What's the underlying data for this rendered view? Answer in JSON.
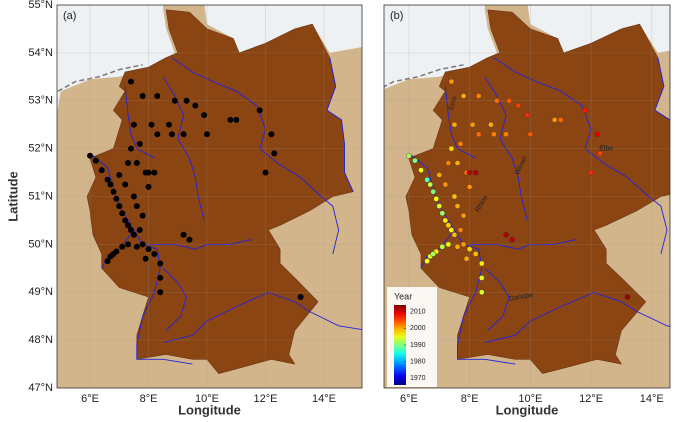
{
  "chart_data": [
    {
      "type": "map",
      "panel": "(a)",
      "xlabel": "Longitude",
      "ylabel": "Latitude",
      "x": [
        6.0,
        6.2,
        6.4,
        6.6,
        6.7,
        6.8,
        6.9,
        7.0,
        7.1,
        7.2,
        7.3,
        7.4,
        7.5,
        7.3,
        7.1,
        6.9,
        6.7,
        6.6,
        6.8,
        7.6,
        7.8,
        8.0,
        8.2,
        8.4,
        8.4,
        8.4,
        7.9,
        7.7,
        7.8,
        7.6,
        7.5,
        7.2,
        7.0,
        7.3,
        7.6,
        7.9,
        8.0,
        7.4,
        7.5,
        7.7,
        8.1,
        8.3,
        8.7,
        8.8,
        7.4,
        7.8,
        8.3,
        8.9,
        9.3,
        9.6,
        9.9,
        10.0,
        9.2,
        10.8,
        11.0,
        11.8,
        12.2,
        12.3,
        12.0,
        9.2,
        9.4,
        13.2,
        8.2,
        8.0
      ],
      "y": [
        51.85,
        51.75,
        51.55,
        51.35,
        51.25,
        51.1,
        50.95,
        50.8,
        50.65,
        50.5,
        50.4,
        50.3,
        50.2,
        50.0,
        49.95,
        49.85,
        49.75,
        49.65,
        49.8,
        49.95,
        50.0,
        49.9,
        49.8,
        49.6,
        49.3,
        49.0,
        49.7,
        50.3,
        50.6,
        50.8,
        51.0,
        51.25,
        51.45,
        51.7,
        51.7,
        51.5,
        51.2,
        52.0,
        52.5,
        52.1,
        52.5,
        52.3,
        52.5,
        52.3,
        53.4,
        53.1,
        53.1,
        53.0,
        53.0,
        52.9,
        52.7,
        52.3,
        52.3,
        52.6,
        52.6,
        52.8,
        52.3,
        51.9,
        51.5,
        50.2,
        50.1,
        48.9,
        51.5,
        51.5
      ],
      "color": "#000000",
      "xlim": [
        4.87,
        15.3
      ],
      "ylim": [
        47,
        55
      ],
      "xticks": [
        {
          "value": 6,
          "label": "6°E"
        },
        {
          "value": 8,
          "label": "8°E"
        },
        {
          "value": 10,
          "label": "10°E"
        },
        {
          "value": 12,
          "label": "12°E"
        },
        {
          "value": 14,
          "label": "14°E"
        }
      ],
      "yticks": [
        {
          "value": 47,
          "label": "47°N"
        },
        {
          "value": 48,
          "label": "48°N"
        },
        {
          "value": 49,
          "label": "49°N"
        },
        {
          "value": 50,
          "label": "50°N"
        },
        {
          "value": 51,
          "label": "51°N"
        },
        {
          "value": 52,
          "label": "52°N"
        },
        {
          "value": 53,
          "label": "53°N"
        },
        {
          "value": 54,
          "label": "54°N"
        },
        {
          "value": 55,
          "label": "55°N"
        }
      ]
    },
    {
      "type": "map",
      "panel": "(b)",
      "xlabel": "Longitude",
      "x": [
        6.0,
        6.2,
        6.4,
        6.6,
        6.7,
        6.8,
        6.9,
        7.0,
        7.1,
        7.2,
        7.3,
        7.4,
        7.5,
        7.3,
        7.1,
        6.9,
        6.7,
        6.6,
        6.8,
        7.6,
        7.8,
        8.0,
        8.2,
        8.4,
        8.4,
        8.4,
        7.9,
        7.7,
        7.8,
        7.6,
        7.5,
        7.2,
        7.0,
        7.3,
        7.6,
        7.9,
        8.0,
        7.4,
        7.5,
        7.7,
        8.1,
        8.3,
        8.7,
        8.8,
        7.4,
        7.8,
        8.3,
        8.9,
        9.3,
        9.6,
        9.9,
        10.0,
        9.2,
        10.8,
        11.0,
        11.8,
        12.2,
        12.3,
        12.0,
        9.2,
        9.4,
        13.2,
        8.2,
        8.0
      ],
      "y": [
        51.85,
        51.75,
        51.55,
        51.35,
        51.25,
        51.1,
        50.95,
        50.8,
        50.65,
        50.5,
        50.4,
        50.3,
        50.2,
        50.0,
        49.95,
        49.85,
        49.75,
        49.65,
        49.8,
        49.95,
        50.0,
        49.9,
        49.8,
        49.6,
        49.3,
        49.0,
        49.7,
        50.3,
        50.6,
        50.8,
        51.0,
        51.25,
        51.45,
        51.7,
        51.7,
        51.5,
        51.2,
        52.0,
        52.5,
        52.1,
        52.5,
        52.3,
        52.5,
        52.3,
        53.4,
        53.1,
        53.1,
        53.0,
        53.0,
        52.9,
        52.7,
        52.3,
        52.3,
        52.6,
        52.6,
        52.8,
        52.3,
        51.9,
        51.5,
        50.2,
        50.1,
        48.9,
        51.5,
        51.5
      ],
      "color_values": [
        1992,
        1990,
        1995,
        1988,
        1993,
        1990,
        1996,
        1994,
        1991,
        1997,
        1998,
        1996,
        1999,
        1995,
        1993,
        1997,
        1994,
        1996,
        1992,
        2000,
        2001,
        1998,
        1999,
        1997,
        1995,
        1994,
        2000,
        2002,
        2001,
        2000,
        1999,
        2001,
        2000,
        2002,
        2000,
        2003,
        2001,
        1998,
        2000,
        2002,
        2001,
        2003,
        2000,
        2002,
        2001,
        2000,
        2002,
        2003,
        2004,
        2005,
        2006,
        2004,
        2002,
        2001,
        2003,
        2007,
        2009,
        2005,
        2006,
        2012,
        2011,
        2013,
        2012,
        2011
      ],
      "clim": [
        1966,
        2014
      ],
      "colorbar_title": "Year",
      "colorbar_ticks": [
        1970,
        1980,
        1990,
        2000,
        2010
      ],
      "rivers": [
        "Ems",
        "Weser",
        "Elbe",
        "Rhine",
        "Danube"
      ],
      "xlim": [
        5.18,
        14.6
      ],
      "ylim": [
        47,
        55
      ],
      "xticks": [
        {
          "value": 6,
          "label": "6°E"
        },
        {
          "value": 8,
          "label": "8°E"
        },
        {
          "value": 10,
          "label": "10°E"
        },
        {
          "value": 12,
          "label": "12°E"
        },
        {
          "value": 14,
          "label": "14°E"
        }
      ],
      "yticks": [
        47,
        48,
        49,
        50,
        51,
        52,
        53,
        54,
        55
      ]
    }
  ]
}
